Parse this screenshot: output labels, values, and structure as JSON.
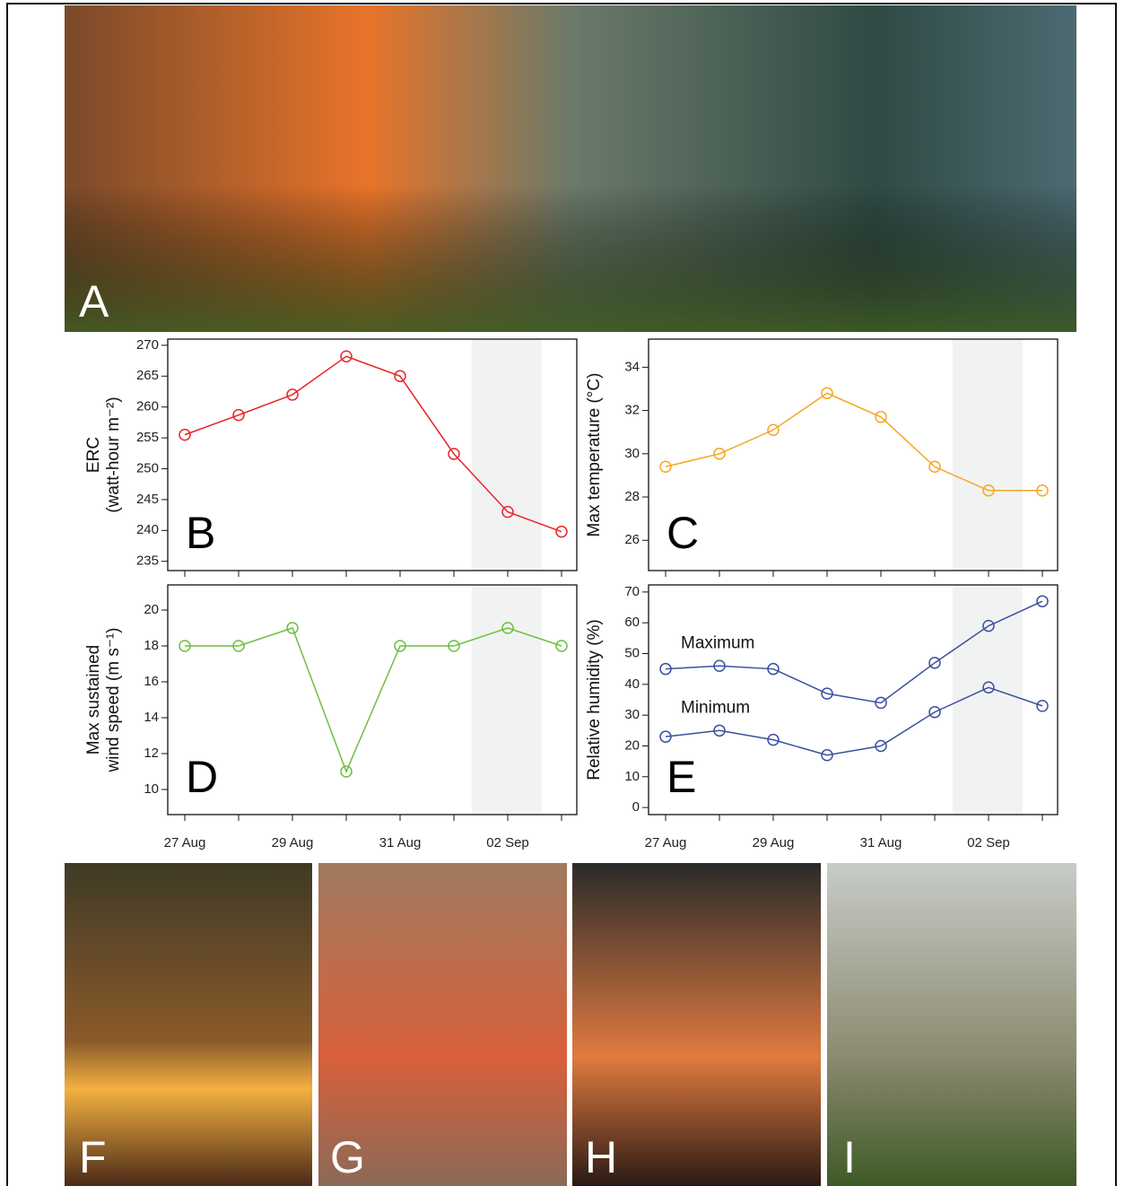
{
  "photos": [
    "A",
    "F",
    "G",
    "H",
    "I"
  ],
  "chart_data": [
    {
      "type": "line",
      "panel_label": "B",
      "y_label": [
        "ERC",
        "(watt-hour m⁻²)"
      ],
      "categories": [
        null,
        null,
        null,
        null,
        null,
        null,
        null,
        null
      ],
      "highlight": [
        5.33,
        6.63
      ],
      "series": [
        {
          "color": "#e8262a",
          "values": [
            255.5,
            258.7,
            262,
            268.2,
            265,
            252.4,
            243,
            239.8
          ]
        }
      ],
      "ylim": [
        233.5,
        271
      ],
      "yticks": [
        235,
        240,
        245,
        250,
        255,
        260,
        265,
        270
      ]
    },
    {
      "type": "line",
      "panel_label": "C",
      "y_label": [
        "Max temperature (°C)"
      ],
      "categories": [
        null,
        null,
        null,
        null,
        null,
        null,
        null,
        null
      ],
      "highlight": [
        5.33,
        6.63
      ],
      "series": [
        {
          "color": "#f5a623",
          "values": [
            29.4,
            30.0,
            31.1,
            32.8,
            31.7,
            29.4,
            28.3,
            28.3
          ]
        }
      ],
      "ylim": [
        24.6,
        35.3
      ],
      "yticks": [
        26,
        28,
        30,
        32,
        34
      ]
    },
    {
      "type": "line",
      "panel_label": "D",
      "y_label": [
        "Max sustained",
        "wind speed (m s⁻¹)"
      ],
      "categories": [
        "27 Aug",
        null,
        "29 Aug",
        null,
        "31 Aug",
        null,
        "02 Sep",
        null
      ],
      "highlight": [
        5.33,
        6.63
      ],
      "series": [
        {
          "color": "#6cbf3f",
          "values": [
            18,
            18,
            19,
            11,
            18,
            18,
            19,
            18
          ]
        }
      ],
      "ylim": [
        8.6,
        21.4
      ],
      "yticks": [
        10,
        12,
        14,
        16,
        18,
        20
      ]
    },
    {
      "type": "line",
      "panel_label": "E",
      "y_label": [
        "Relative humidity (%)"
      ],
      "categories": [
        "27 Aug",
        null,
        "29 Aug",
        null,
        "31 Aug",
        null,
        "02 Sep",
        null
      ],
      "highlight": [
        5.33,
        6.63
      ],
      "series": [
        {
          "name": "Maximum",
          "color": "#3a4fa0",
          "values": [
            45,
            46,
            45,
            37,
            34,
            47,
            59,
            67
          ]
        },
        {
          "name": "Minimum",
          "color": "#3a4fa0",
          "values": [
            23,
            25,
            22,
            17,
            20,
            31,
            39,
            33
          ]
        }
      ],
      "ylim": [
        -2.3,
        72.3
      ],
      "yticks": [
        0,
        10,
        20,
        30,
        40,
        50,
        60,
        70
      ]
    }
  ]
}
